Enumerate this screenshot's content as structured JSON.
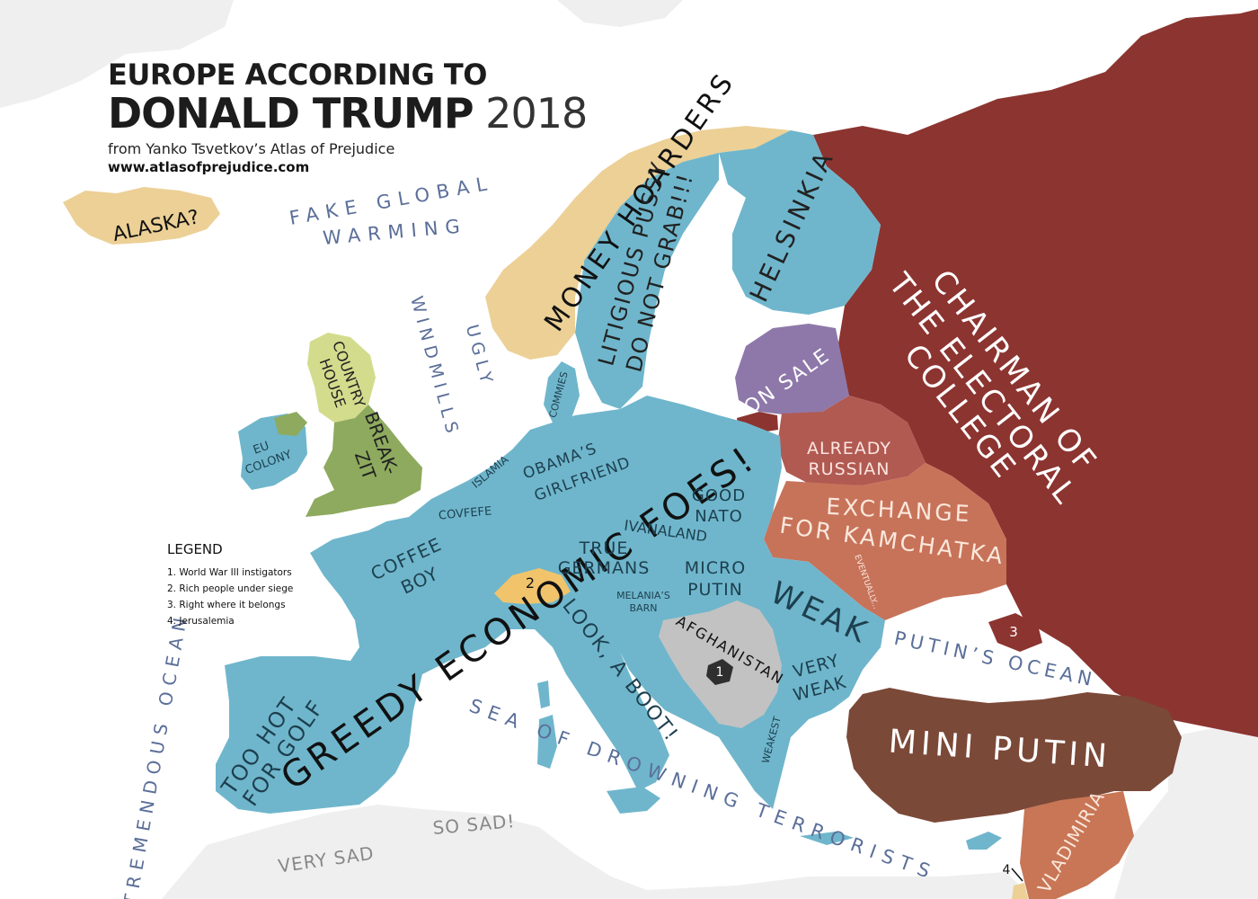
{
  "title": {
    "line1": "EUROPE ACCORDING TO",
    "line2_bold": "DONALD TRUMP",
    "line2_year": "2018",
    "credit": "from Yanko Tsvetkov’s Atlas of Prejudice",
    "url": "www.atlasofprejudice.com"
  },
  "legend": {
    "heading": "LEGEND",
    "items": [
      "1. World War III instigators",
      "2. Rich people under siege",
      "3. Right where it belongs",
      "4. Jerusalemia"
    ]
  },
  "regions": {
    "iceland": "ALASKA?",
    "norway": "MONEY HOARDERS",
    "sweden_1": "LITIGIOUS PUSSY",
    "sweden_2": "DO NOT GRAB!!!",
    "finland": "HELSINKIA",
    "russia_1": "CHAIRMAN OF",
    "russia_2": "THE ELECTORAL",
    "russia_3": "COLLEGE",
    "baltics": "ON SALE",
    "belarus_1": "ALREADY",
    "belarus_2": "RUSSIAN",
    "ukraine_1": "EXCHANGE",
    "ukraine_2": "FOR KAMCHATKA",
    "ukraine_small": "EVENTUALLY...",
    "scotland_1": "COUNTRY",
    "scotland_2": "HOUSE",
    "england_1": "BREAK-",
    "england_2": "ZIT",
    "ireland_1": "EU",
    "ireland_2": "COLONY",
    "denmark": "COMMIES",
    "main": "GREEDY ECONOMIC FOES!",
    "netherlands": "ISLAMIA",
    "belgium": "COVFEFE",
    "germany_1": "OBAMA’S",
    "germany_2": "GIRLFRIEND",
    "poland_1": "GOOD",
    "poland_2": "NATO",
    "czechia": "IVANALAND",
    "austria_1": "TRUE",
    "austria_2": "GERMANS",
    "france_1": "COFFEE",
    "france_2": "BOY",
    "slovakia_1": "MICRO",
    "slovakia_2": "PUTIN",
    "slovenia_1": "MELANIA’S",
    "slovenia_2": "BARN",
    "romania": "WEAK",
    "bulgaria_1": "VERY",
    "bulgaria_2": "WEAK",
    "greece": "WEAKEST",
    "balkans": "AFGHANISTAN",
    "italy": "LOOK, A BOOT!",
    "iberia_1": "TOO HOT",
    "iberia_2": "FOR GOLF",
    "turkey": "MINI PUTIN",
    "syria": "VLADIMIRIA",
    "africa_1": "VERY SAD",
    "africa_2": "SO SAD!"
  },
  "seas": {
    "north_atlantic_1": "FAKE GLOBAL",
    "north_atlantic_2": "WARMING",
    "north_sea_1": "UGLY",
    "north_sea_2": "WINDMILLS",
    "atlantic": "TREMENDOUS OCEAN",
    "black_sea": "PUTIN’S OCEAN",
    "mediterranean": "SEA OF DROWNING TERRORISTS"
  },
  "markers": {
    "balkans_marker": "1",
    "switzerland_marker": "2",
    "crimea_marker": "3",
    "israel_marker": "4"
  },
  "colors": {
    "eu_blue": "#6fb6cc",
    "sand": "#ecd096",
    "russia_red": "#8c3430",
    "purple": "#8e78aa",
    "belarus": "#b15a52",
    "ukraine": "#c7735a",
    "turkey_brown": "#7b4938",
    "syria": "#c87656",
    "uk_green": "#8eaa5e",
    "scot_green": "#d3dc8c",
    "grey_balkans": "#c2c2c2",
    "switzerland": "#f1c46c",
    "sea_label": "#5b6f99",
    "land_grey": "#efefef"
  }
}
